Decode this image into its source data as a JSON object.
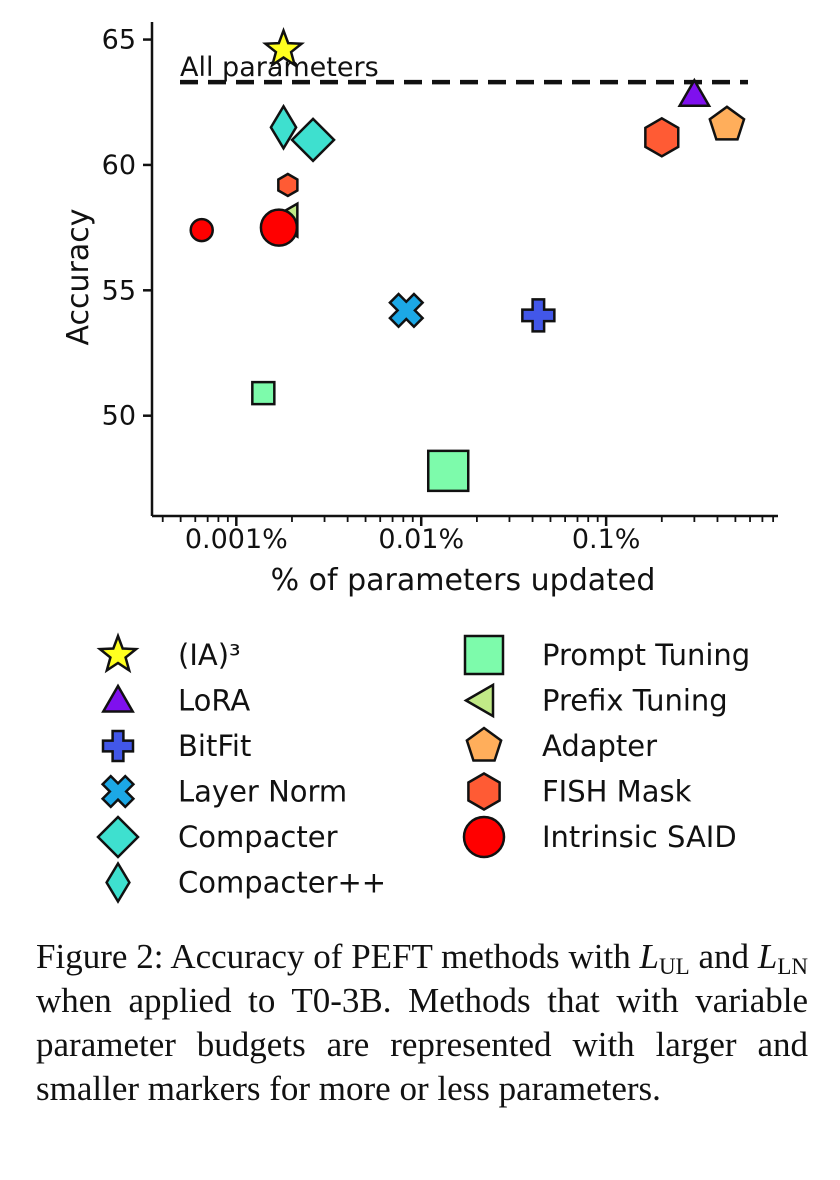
{
  "chart_data": {
    "type": "scatter",
    "xlabel": "% of parameters updated",
    "ylabel": "Accuracy",
    "x_scale": "log",
    "xlim": [
      0.00035,
      0.85
    ],
    "ylim": [
      46,
      65.7
    ],
    "x_ticks": [
      {
        "value": 0.001,
        "label": "0.001%"
      },
      {
        "value": 0.01,
        "label": "0.01%"
      },
      {
        "value": 0.1,
        "label": "0.1%"
      }
    ],
    "y_ticks": [
      {
        "value": 50,
        "label": "50"
      },
      {
        "value": 55,
        "label": "55"
      },
      {
        "value": 60,
        "label": "60"
      },
      {
        "value": 65,
        "label": "65"
      }
    ],
    "reference_line": {
      "label": "All parameters",
      "y": 63.3
    },
    "series": [
      {
        "name": "(IA)³",
        "marker": "star",
        "color": "#ffff1f",
        "points": [
          {
            "x": 0.0018,
            "y": 64.6,
            "size": "normal"
          }
        ]
      },
      {
        "name": "LoRA",
        "marker": "triangle-up",
        "color": "#7f10ee",
        "points": [
          {
            "x": 0.3,
            "y": 62.8,
            "size": "normal"
          }
        ]
      },
      {
        "name": "BitFit",
        "marker": "plus",
        "color": "#4257e9",
        "points": [
          {
            "x": 0.043,
            "y": 54.0,
            "size": "normal"
          }
        ]
      },
      {
        "name": "Layer Norm",
        "marker": "x",
        "color": "#1ca8e6",
        "points": [
          {
            "x": 0.0083,
            "y": 54.2,
            "size": "normal"
          }
        ]
      },
      {
        "name": "Compacter",
        "marker": "diamond",
        "color": "#3ee0cf",
        "points": [
          {
            "x": 0.0026,
            "y": 61.0,
            "size": "normal"
          }
        ]
      },
      {
        "name": "Compacter++",
        "marker": "thin-diamond",
        "color": "#3ee0cf",
        "points": [
          {
            "x": 0.0018,
            "y": 61.5,
            "size": "normal"
          }
        ]
      },
      {
        "name": "Prompt Tuning",
        "marker": "square",
        "color": "#7dfbab",
        "points": [
          {
            "x": 0.0014,
            "y": 50.9,
            "size": "small"
          },
          {
            "x": 0.014,
            "y": 47.8,
            "size": "large"
          }
        ]
      },
      {
        "name": "Prefix Tuning",
        "marker": "triangle-left",
        "color": "#c1ea87",
        "points": [
          {
            "x": 0.0019,
            "y": 57.8,
            "size": "normal"
          }
        ]
      },
      {
        "name": "Adapter",
        "marker": "pentagon",
        "color": "#ffae5b",
        "points": [
          {
            "x": 0.45,
            "y": 61.6,
            "size": "normal"
          }
        ]
      },
      {
        "name": "FISH Mask",
        "marker": "hexagon",
        "color": "#ff5b34",
        "points": [
          {
            "x": 0.0019,
            "y": 59.2,
            "size": "small"
          },
          {
            "x": 0.2,
            "y": 61.1,
            "size": "large"
          }
        ]
      },
      {
        "name": "Intrinsic SAID",
        "marker": "circle",
        "color": "#ff0000",
        "points": [
          {
            "x": 0.00065,
            "y": 57.4,
            "size": "small"
          },
          {
            "x": 0.0017,
            "y": 57.5,
            "size": "large"
          }
        ]
      }
    ],
    "legend": {
      "placement": "bottom",
      "columns": 2
    }
  },
  "caption": {
    "label": "Figure 2:",
    "text_1": " Accuracy of PEFT methods with ",
    "sym_1": "L",
    "sub_1": "UL",
    "text_2": " and ",
    "sym_2": "L",
    "sub_2": "LN",
    "text_3": " when applied to T0-3B. Methods that with variable parameter budgets are represented with larger and smaller markers for more or less parameters."
  }
}
